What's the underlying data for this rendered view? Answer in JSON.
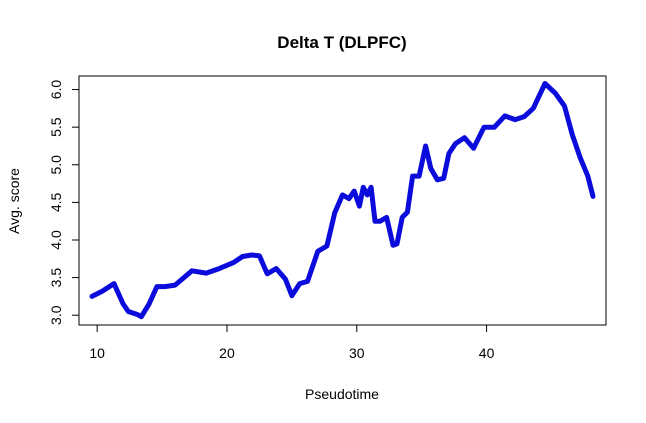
{
  "chart_data": {
    "type": "line",
    "title": "Delta T (DLPFC)",
    "xlabel": "Pseudotime",
    "ylabel": "Avg. score",
    "xlim": [
      8.6,
      49.2
    ],
    "ylim": [
      2.87,
      6.18
    ],
    "x_ticks": [
      "10",
      "20",
      "30",
      "40"
    ],
    "y_ticks": [
      "3.0",
      "3.5",
      "4.0",
      "4.5",
      "5.0",
      "5.5",
      "6.0"
    ],
    "grid": false,
    "line_color": "#0b0bdc",
    "series": [
      {
        "x": [
          9.6,
          10.4,
          11.3,
          12.0,
          12.4,
          13.1,
          13.4,
          14.0,
          14.6,
          15.2,
          16.0,
          17.3,
          18.4,
          19.4,
          20.5,
          21.2,
          21.9,
          22.5,
          23.1,
          23.8,
          24.5,
          25.0,
          25.6,
          26.2,
          27.0,
          27.7,
          28.3,
          28.9,
          29.4,
          29.8,
          30.2,
          30.5,
          30.8,
          31.1,
          31.4,
          31.8,
          32.3,
          32.8,
          33.1,
          33.5,
          33.9,
          34.3,
          34.8,
          35.3,
          35.7,
          36.2,
          36.7,
          37.1,
          37.6,
          38.3,
          39.0,
          39.8,
          40.6,
          41.4,
          42.2,
          42.9,
          43.6,
          44.5,
          45.3,
          46.0,
          46.6,
          47.2,
          47.8,
          48.2
        ],
        "y": [
          3.25,
          3.32,
          3.42,
          3.15,
          3.05,
          3.01,
          2.98,
          3.15,
          3.38,
          3.38,
          3.4,
          3.59,
          3.56,
          3.62,
          3.7,
          3.78,
          3.8,
          3.79,
          3.55,
          3.62,
          3.48,
          3.26,
          3.42,
          3.45,
          3.85,
          3.92,
          4.36,
          4.6,
          4.55,
          4.65,
          4.45,
          4.7,
          4.6,
          4.7,
          4.25,
          4.25,
          4.3,
          3.93,
          3.95,
          4.3,
          4.37,
          4.85,
          4.85,
          5.25,
          4.95,
          4.8,
          4.82,
          5.15,
          5.28,
          5.36,
          5.22,
          5.5,
          5.5,
          5.65,
          5.6,
          5.64,
          5.75,
          6.08,
          5.95,
          5.78,
          5.4,
          5.1,
          4.85,
          4.58
        ]
      }
    ]
  }
}
